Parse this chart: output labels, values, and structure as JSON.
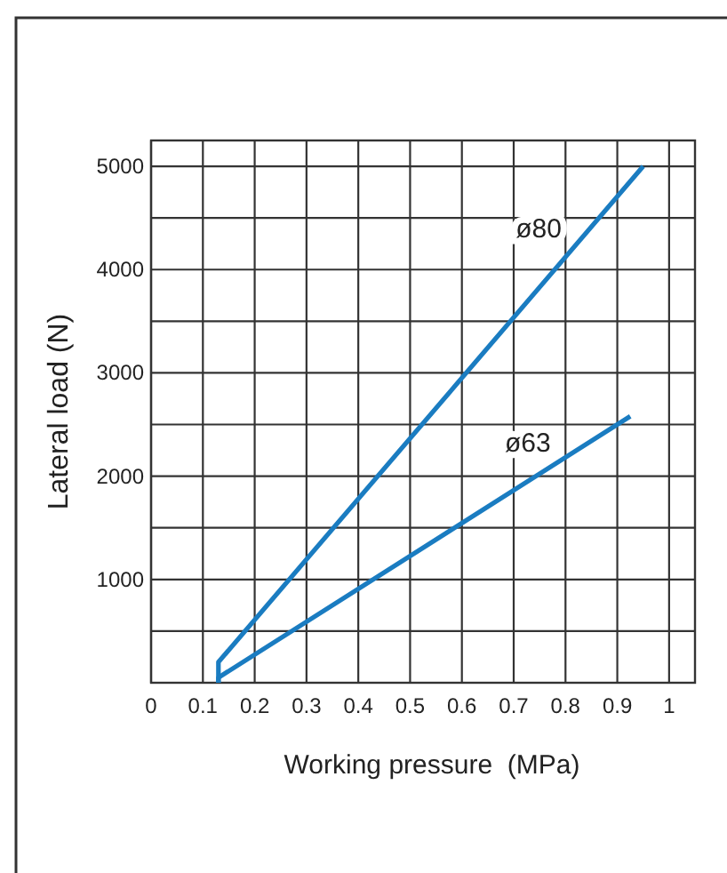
{
  "chart_data": {
    "type": "line",
    "xlabel": "Working pressure  (MPa)",
    "ylabel": "Lateral load (N)",
    "xlim": [
      0,
      1.05
    ],
    "ylim": [
      0,
      5250
    ],
    "xticks": [
      0,
      0.1,
      0.2,
      0.3,
      0.4,
      0.5,
      0.6,
      0.7,
      0.8,
      0.9,
      1
    ],
    "yticks": [
      {
        "value": 0,
        "label": null
      },
      {
        "value": 500,
        "label": null
      },
      1000,
      {
        "value": 1500,
        "label": null
      },
      2000,
      {
        "value": 2500,
        "label": null
      },
      3000,
      {
        "value": 3500,
        "label": null
      },
      4000,
      {
        "value": 4500,
        "label": null
      },
      5000
    ],
    "grid": true,
    "marker": "none",
    "line_style": "solid",
    "series": [
      {
        "name": "ø80",
        "color": "#1a7cc1",
        "x": [
          0.13,
          0.13,
          0.95
        ],
        "values": [
          0,
          200,
          5000
        ]
      },
      {
        "name": "ø63",
        "color": "#1a7cc1",
        "x": [
          0.13,
          0.13,
          0.925
        ],
        "values": [
          0,
          50,
          2580
        ]
      }
    ]
  }
}
